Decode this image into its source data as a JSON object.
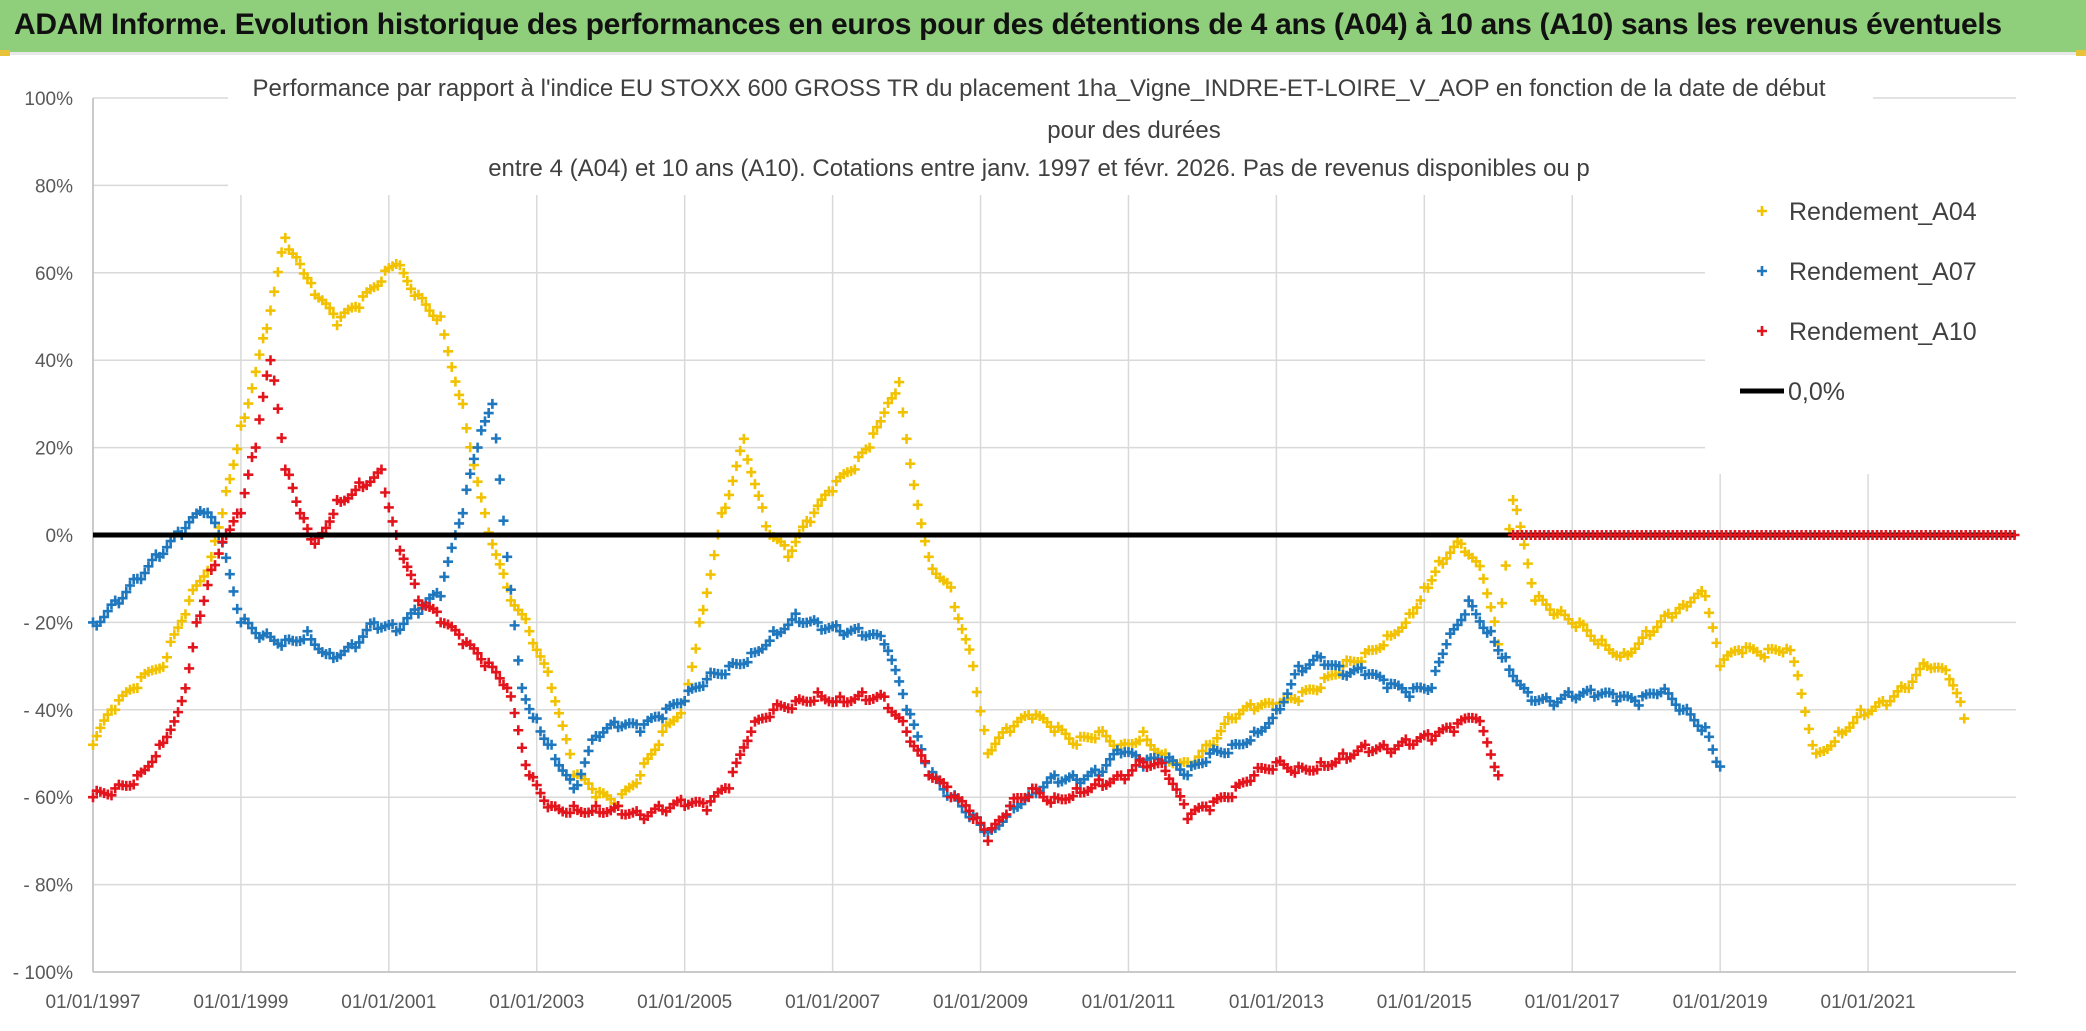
{
  "banner": {
    "title": "ADAM Informe. Evolution historique des performances en euros pour des détentions de 4 ans (A04) à 10 ans (A10) sans les revenus éventuels",
    "color": "#8fce7a"
  },
  "chart_data": {
    "type": "scatter",
    "title_lines": [
      "Performance par rapport à l'indice EU STOXX 600 GROSS TR  du placement 1ha_Vigne_INDRE-ET-LOIRE_V_AOP en fonction de la date de début",
      "pour des durées",
      "entre 4 (A04) et 10 ans (A10). Cotations entre janv. 1997 et févr. 2026. Pas de revenus disponibles ou p"
    ],
    "xlabel": "",
    "ylabel": "",
    "x_range": [
      1997.0,
      2023.0
    ],
    "ylim": [
      -100,
      100
    ],
    "y_ticks": [
      100,
      80,
      60,
      40,
      20,
      0,
      -20,
      -40,
      -60,
      -80,
      -100
    ],
    "y_tick_labels": [
      "100%",
      "80%",
      "60%",
      "40%",
      "20%",
      "0%",
      "- 20%",
      "- 40%",
      "- 60%",
      "- 80%",
      "- 100%"
    ],
    "x_ticks": [
      1997,
      1999,
      2001,
      2003,
      2005,
      2007,
      2009,
      2011,
      2013,
      2015,
      2017,
      2019,
      2021
    ],
    "x_tick_labels": [
      "01/01/1997",
      "01/01/1999",
      "01/01/2001",
      "01/01/2003",
      "01/01/2005",
      "01/01/2007",
      "01/01/2009",
      "01/01/2011",
      "01/01/2013",
      "01/01/2015",
      "01/01/2017",
      "01/01/2019",
      "01/01/2021"
    ],
    "grid": true,
    "legend_position": "top-right",
    "series": [
      {
        "name": "Rendement_A04",
        "color": "#f2c200",
        "x": [
          1997.0,
          1997.3,
          1997.6,
          1998.0,
          1998.3,
          1998.6,
          1998.8,
          1999.0,
          1999.3,
          1999.6,
          1999.8,
          2000.0,
          2000.3,
          2000.6,
          2000.9,
          2001.1,
          2001.4,
          2001.7,
          2002.0,
          2002.3,
          2002.6,
          2002.9,
          2003.2,
          2003.5,
          2003.8,
          2004.1,
          2004.4,
          2004.7,
          2005.0,
          2005.2,
          2005.5,
          2005.8,
          2006.1,
          2006.4,
          2006.7,
          2007.0,
          2007.3,
          2007.5,
          2007.7,
          2007.9,
          2008.0,
          2008.3,
          2008.6,
          2008.9,
          2009.1,
          2009.4,
          2009.7,
          2010.0,
          2010.3,
          2010.6,
          2010.9,
          2011.2,
          2011.5,
          2011.8,
          2012.1,
          2012.4,
          2012.7,
          2013.0,
          2013.3,
          2013.6,
          2013.9,
          2014.2,
          2014.5,
          2014.8,
          2015.0,
          2015.2,
          2015.5,
          2015.8,
          2016.0,
          2016.2,
          2016.5,
          2016.8,
          2017.1,
          2017.4,
          2017.7,
          2018.0,
          2018.3,
          2018.5,
          2018.8,
          2019.0,
          2019.3,
          2019.6,
          2019.9,
          2020.0,
          2020.3,
          2020.6,
          2020.9,
          2021.2,
          2021.5,
          2021.8,
          2022.1,
          2022.3
        ],
        "values": [
          -48,
          -40,
          -35,
          -28,
          -15,
          -5,
          10,
          25,
          45,
          68,
          62,
          55,
          48,
          52,
          58,
          62,
          55,
          50,
          30,
          5,
          -12,
          -22,
          -35,
          -55,
          -60,
          -62,
          -55,
          -45,
          -38,
          -20,
          5,
          22,
          2,
          -5,
          3,
          10,
          15,
          20,
          28,
          35,
          22,
          -5,
          -12,
          -30,
          -50,
          -45,
          -42,
          -45,
          -48,
          -45,
          -48,
          -45,
          -50,
          -52,
          -48,
          -42,
          -40,
          -40,
          -38,
          -35,
          -30,
          -27,
          -23,
          -18,
          -12,
          -6,
          -2,
          -10,
          -25,
          8,
          -15,
          -18,
          -20,
          -24,
          -27,
          -22,
          -18,
          -16,
          -14,
          -30,
          -27,
          -28,
          -26,
          -29,
          -50,
          -45,
          -40,
          -38,
          -35,
          -30,
          -33,
          -42
        ]
      },
      {
        "name": "Rendement_A07",
        "color": "#1f77bd",
        "x": [
          1997.0,
          1997.3,
          1997.6,
          1997.9,
          1998.2,
          1998.5,
          1998.7,
          1999.0,
          1999.3,
          1999.6,
          1999.9,
          2000.2,
          2000.5,
          2000.8,
          2001.1,
          2001.4,
          2001.7,
          2002.0,
          2002.2,
          2002.4,
          2002.6,
          2002.8,
          2003.0,
          2003.2,
          2003.5,
          2003.8,
          2004.1,
          2004.4,
          2004.7,
          2005.0,
          2005.3,
          2005.6,
          2005.9,
          2006.2,
          2006.5,
          2006.8,
          2007.1,
          2007.4,
          2007.7,
          2008.0,
          2008.3,
          2008.6,
          2008.9,
          2009.1,
          2009.4,
          2009.7,
          2010.0,
          2010.3,
          2010.6,
          2010.9,
          2011.2,
          2011.5,
          2011.8,
          2012.1,
          2012.4,
          2012.7,
          2013.0,
          2013.3,
          2013.6,
          2013.9,
          2014.2,
          2014.5,
          2014.8,
          2015.1,
          2015.3,
          2015.6,
          2015.9,
          2016.1,
          2016.4,
          2016.7,
          2017.0,
          2017.3,
          2017.6,
          2017.9,
          2018.2,
          2018.5,
          2018.8,
          2019.0
        ],
        "values": [
          -20,
          -15,
          -10,
          -5,
          0,
          5,
          0,
          -20,
          -23,
          -24,
          -22,
          -27,
          -25,
          -20,
          -22,
          -18,
          -14,
          5,
          20,
          30,
          -5,
          -35,
          -42,
          -48,
          -58,
          -46,
          -44,
          -45,
          -42,
          -38,
          -33,
          -30,
          -27,
          -22,
          -18,
          -20,
          -22,
          -23,
          -25,
          -40,
          -55,
          -60,
          -64,
          -68,
          -62,
          -58,
          -55,
          -56,
          -55,
          -50,
          -53,
          -52,
          -55,
          -50,
          -48,
          -45,
          -40,
          -30,
          -28,
          -32,
          -32,
          -35,
          -37,
          -35,
          -25,
          -15,
          -22,
          -28,
          -36,
          -38,
          -37,
          -37,
          -38,
          -39,
          -36,
          -40,
          -44,
          -53
        ]
      },
      {
        "name": "Rendement_A10",
        "color": "#e3141c",
        "x": [
          1997.0,
          1997.3,
          1997.6,
          1997.9,
          1998.2,
          1998.4,
          1998.6,
          1998.8,
          1999.0,
          1999.2,
          1999.4,
          1999.6,
          1999.8,
          2000.0,
          2000.3,
          2000.6,
          2000.9,
          2001.1,
          2001.4,
          2001.7,
          2002.0,
          2002.3,
          2002.6,
          2002.9,
          2003.2,
          2003.5,
          2003.8,
          2004.1,
          2004.4,
          2004.7,
          2005.0,
          2005.3,
          2005.6,
          2005.9,
          2006.2,
          2006.5,
          2006.8,
          2007.1,
          2007.4,
          2007.7,
          2008.0,
          2008.3,
          2008.6,
          2008.9,
          2009.1,
          2009.4,
          2009.7,
          2010.0,
          2010.3,
          2010.6,
          2010.9,
          2011.2,
          2011.5,
          2011.8,
          2012.1,
          2012.4,
          2012.7,
          2013.0,
          2013.3,
          2013.6,
          2013.9,
          2014.2,
          2014.5,
          2014.8,
          2015.1,
          2015.4,
          2015.7,
          2016.0
        ],
        "values": [
          -60,
          -58,
          -55,
          -48,
          -38,
          -20,
          -8,
          0,
          5,
          20,
          40,
          15,
          5,
          -2,
          8,
          12,
          15,
          0,
          -15,
          -20,
          -25,
          -30,
          -35,
          -55,
          -62,
          -62,
          -62,
          -62,
          -64,
          -63,
          -62,
          -63,
          -58,
          -45,
          -40,
          -38,
          -36,
          -37,
          -36,
          -37,
          -45,
          -55,
          -60,
          -65,
          -70,
          -62,
          -58,
          -60,
          -58,
          -56,
          -55,
          -52,
          -54,
          -65,
          -63,
          -60,
          -55,
          -52,
          -53,
          -52,
          -50,
          -48,
          -49,
          -48,
          -47,
          -45,
          -42,
          -55
        ]
      },
      {
        "name": "0,0%",
        "color": "#000000",
        "style": "line",
        "x": [
          1997.0,
          2023.0
        ],
        "values": [
          0,
          0
        ]
      }
    ],
    "constant_segment": {
      "series": "Rendement_A10",
      "x_from": 2016.2,
      "x_to": 2023.0,
      "value": 0
    }
  }
}
